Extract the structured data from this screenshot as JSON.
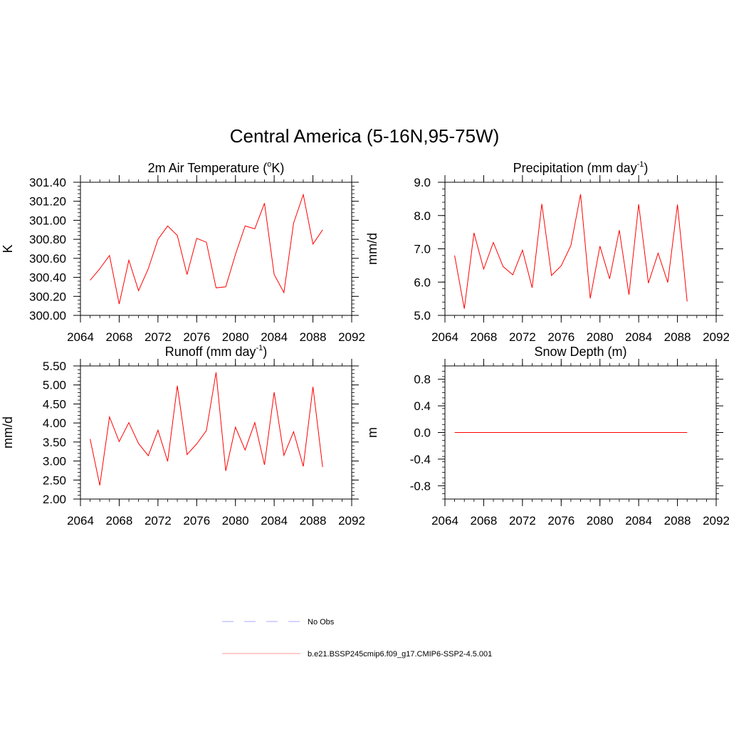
{
  "figure": {
    "title": "Central America (5-16N,95-75W)",
    "legend": [
      {
        "label": "No Obs",
        "color": "#a9a9ff",
        "style": "dashed"
      },
      {
        "label": "b.e21.BSSP245cmip6.f09_g17.CMIP6-SSP2-4.5.001",
        "color": "#ff9a9a",
        "style": "solid"
      }
    ]
  },
  "chart_data": [
    {
      "type": "line",
      "title": "2m Air Temperature (",
      "title_sup": "o",
      "title_tail": "K)",
      "xlabel": "",
      "ylabel": "K",
      "xlim": [
        2064,
        2092
      ],
      "ylim": [
        300.0,
        301.4
      ],
      "xticks": [
        "2064",
        "2068",
        "2072",
        "2076",
        "2080",
        "2084",
        "2088",
        "2092"
      ],
      "yticks": [
        "300.00",
        "300.20",
        "300.40",
        "300.60",
        "300.80",
        "301.00",
        "301.20",
        "301.40"
      ],
      "grid": false,
      "series": [
        {
          "color": "#ff0000",
          "x": [
            2065,
            2066,
            2067,
            2068,
            2069,
            2070,
            2071,
            2072,
            2073,
            2074,
            2075,
            2076,
            2077,
            2078,
            2079,
            2080,
            2081,
            2082,
            2083,
            2084,
            2085,
            2086,
            2087,
            2088,
            2089
          ],
          "y": [
            300.37,
            300.49,
            300.63,
            300.12,
            300.58,
            300.26,
            300.49,
            300.8,
            300.94,
            300.84,
            300.43,
            300.81,
            300.77,
            300.29,
            300.3,
            300.64,
            300.94,
            300.91,
            301.18,
            300.43,
            300.24,
            300.97,
            301.27,
            300.75,
            300.9
          ]
        }
      ]
    },
    {
      "type": "line",
      "title": "Precipitation (mm day",
      "title_sup": "-1",
      "title_tail": ")",
      "xlabel": "",
      "ylabel": "mm/d",
      "xlim": [
        2064,
        2092
      ],
      "ylim": [
        5.0,
        9.0
      ],
      "xticks": [
        "2064",
        "2068",
        "2072",
        "2076",
        "2080",
        "2084",
        "2088",
        "2092"
      ],
      "yticks": [
        "5.0",
        "6.0",
        "7.0",
        "8.0",
        "9.0"
      ],
      "grid": false,
      "series": [
        {
          "color": "#ff0000",
          "x": [
            2065,
            2066,
            2067,
            2068,
            2069,
            2070,
            2071,
            2072,
            2073,
            2074,
            2075,
            2076,
            2077,
            2078,
            2079,
            2080,
            2081,
            2082,
            2083,
            2084,
            2085,
            2086,
            2087,
            2088,
            2089
          ],
          "y": [
            6.8,
            5.2,
            7.48,
            6.39,
            7.19,
            6.47,
            6.22,
            6.96,
            5.83,
            8.35,
            6.2,
            6.49,
            7.1,
            8.64,
            5.51,
            7.08,
            6.1,
            7.56,
            5.62,
            8.34,
            5.97,
            6.87,
            5.99,
            8.33,
            5.42
          ]
        }
      ]
    },
    {
      "type": "line",
      "title": "Runoff (mm day",
      "title_sup": "-1",
      "title_tail": ")",
      "xlabel": "",
      "ylabel": "mm/d",
      "xlim": [
        2064,
        2092
      ],
      "ylim": [
        2.0,
        5.5
      ],
      "xticks": [
        "2064",
        "2068",
        "2072",
        "2076",
        "2080",
        "2084",
        "2088",
        "2092"
      ],
      "yticks": [
        "2.00",
        "2.50",
        "3.00",
        "3.50",
        "4.00",
        "4.50",
        "5.00",
        "5.50"
      ],
      "grid": false,
      "series": [
        {
          "color": "#ff0000",
          "x": [
            2065,
            2066,
            2067,
            2068,
            2069,
            2070,
            2071,
            2072,
            2073,
            2074,
            2075,
            2076,
            2077,
            2078,
            2079,
            2080,
            2081,
            2082,
            2083,
            2084,
            2085,
            2086,
            2087,
            2088,
            2089
          ],
          "y": [
            3.58,
            2.36,
            4.16,
            3.51,
            4.01,
            3.46,
            3.14,
            3.81,
            2.99,
            4.98,
            3.17,
            3.45,
            3.8,
            5.33,
            2.74,
            3.89,
            3.29,
            4.01,
            2.9,
            4.81,
            3.15,
            3.77,
            2.86,
            4.95,
            2.84
          ]
        }
      ]
    },
    {
      "type": "line",
      "title": "Snow Depth (m)",
      "title_sup": "",
      "title_tail": "",
      "xlabel": "",
      "ylabel": "m",
      "xlim": [
        2064,
        2092
      ],
      "ylim": [
        -1.0,
        1.0
      ],
      "xticks": [
        "2064",
        "2068",
        "2072",
        "2076",
        "2080",
        "2084",
        "2088",
        "2092"
      ],
      "yticks": [
        "-0.8",
        "-0.4",
        "0.0",
        "0.4",
        "0.8"
      ],
      "grid": false,
      "series": [
        {
          "color": "#ff0000",
          "x": [
            2065,
            2066,
            2067,
            2068,
            2069,
            2070,
            2071,
            2072,
            2073,
            2074,
            2075,
            2076,
            2077,
            2078,
            2079,
            2080,
            2081,
            2082,
            2083,
            2084,
            2085,
            2086,
            2087,
            2088,
            2089
          ],
          "y": [
            0,
            0,
            0,
            0,
            0,
            0,
            0,
            0,
            0,
            0,
            0,
            0,
            0,
            0,
            0,
            0,
            0,
            0,
            0,
            0,
            0,
            0,
            0,
            0,
            0
          ]
        }
      ]
    }
  ]
}
